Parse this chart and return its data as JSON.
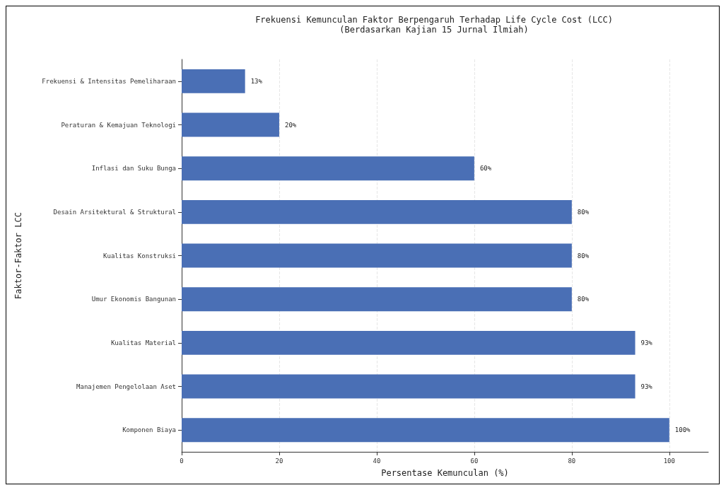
{
  "chart_data": {
    "type": "bar",
    "orientation": "horizontal",
    "title": "Frekuensi Kemunculan Faktor Berpengaruh Terhadap Life Cycle Cost (LCC)",
    "subtitle": "(Berdasarkan Kajian 15 Jurnal Ilmiah)",
    "xlabel": "Persentase Kemunculan (%)",
    "ylabel": "Faktor-Faktor LCC",
    "categories": [
      "Frekuensi & Intensitas Pemeliharaan",
      "Peraturan & Kemajuan Teknologi",
      "Inflasi dan Suku Bunga",
      "Desain Arsitektural & Struktural",
      "Kualitas Konstruksi",
      "Umur Ekonomis Bangunan",
      "Kualitas Material",
      "Manajemen Pengelolaan Aset",
      "Komponen Biaya"
    ],
    "values": [
      13,
      20,
      60,
      80,
      80,
      80,
      93,
      93,
      100
    ],
    "value_labels": [
      "13%",
      "20%",
      "60%",
      "80%",
      "80%",
      "80%",
      "93%",
      "93%",
      "100%"
    ],
    "color": "#4a6fb5",
    "xlim": [
      0,
      108
    ],
    "xticks": [
      0,
      20,
      40,
      60,
      80,
      100
    ],
    "grid": "x"
  }
}
